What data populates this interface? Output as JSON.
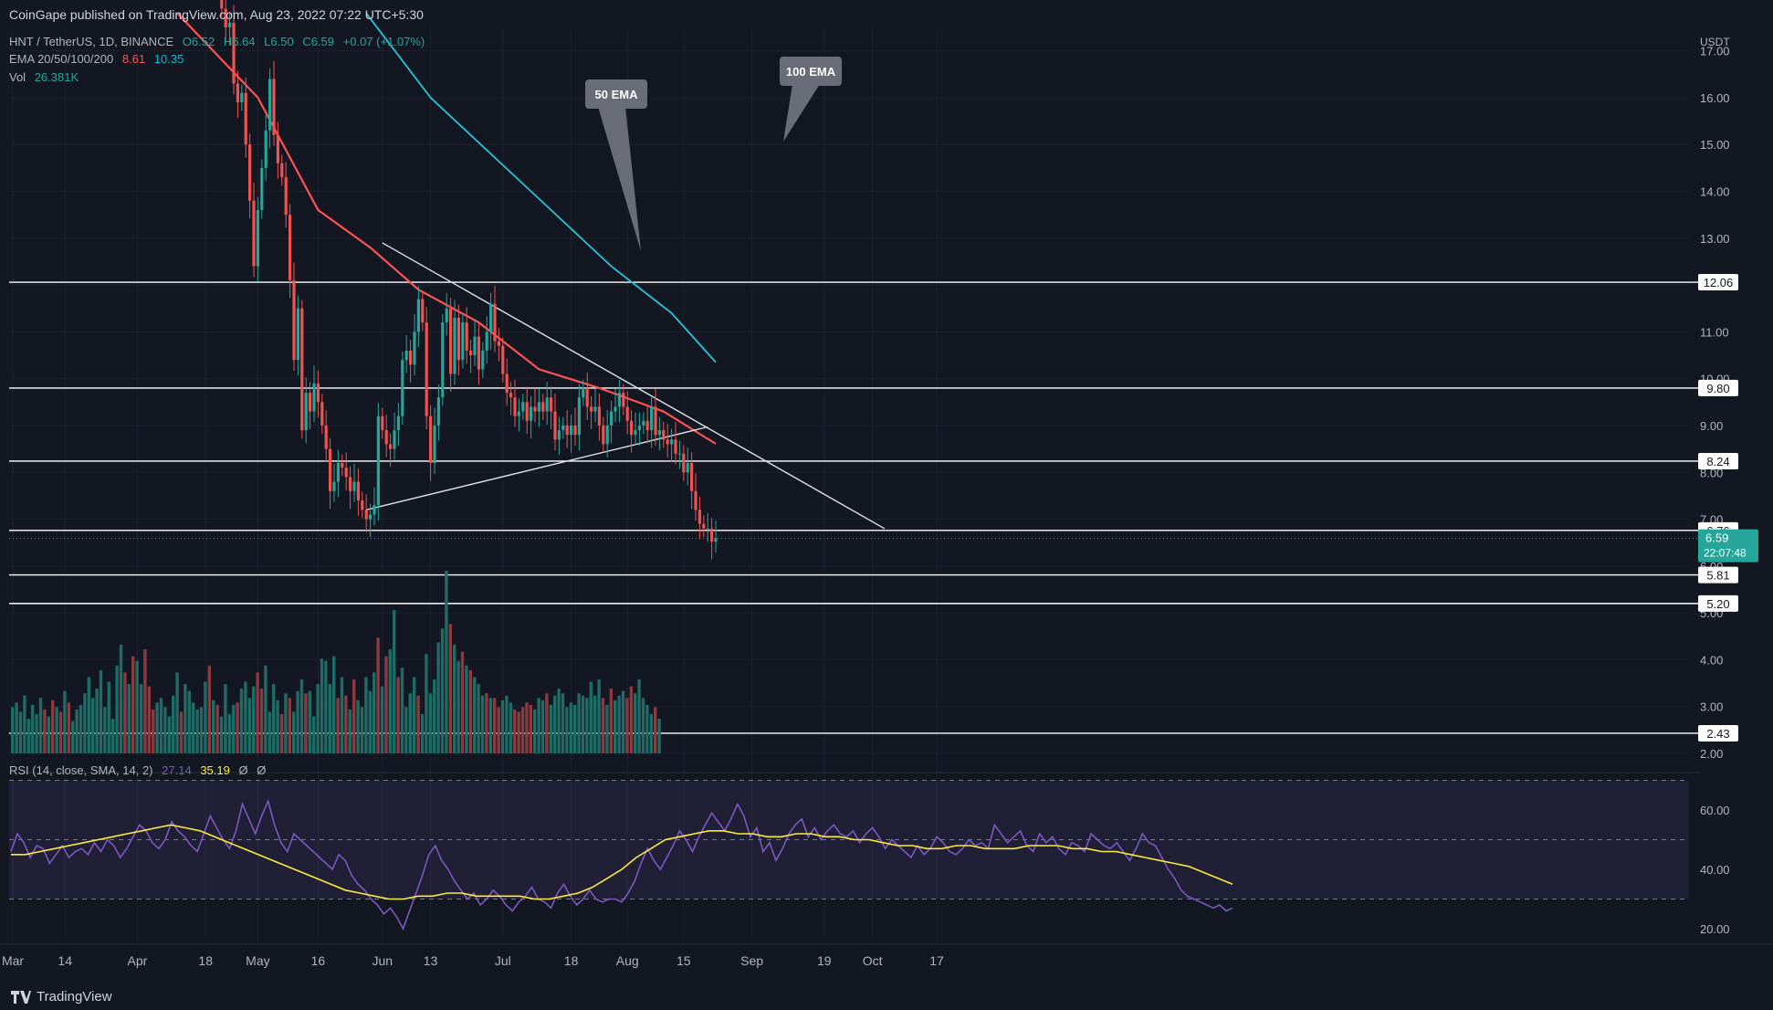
{
  "header": {
    "published": "CoinGape published on TradingView.com, Aug 23, 2022 07:22 UTC+5:30",
    "symbol": "HNT / TetherUS, 1D, BINANCE",
    "ohlc": {
      "o": "O6.52",
      "h": "H6.64",
      "l": "L6.50",
      "c": "C6.59",
      "chg": "+0.07 (+1.07%)"
    },
    "ema_label": "EMA 20/50/100/200",
    "ema_vals": [
      "8.61",
      "10.35"
    ],
    "vol_label": "Vol",
    "vol_val": "26.381K",
    "rsi_label": "RSI (14, close, SMA, 14, 2)",
    "rsi_vals": [
      "27.14",
      "35.19",
      "Ø",
      "Ø"
    ]
  },
  "footer": {
    "brand": "TradingView",
    "icon": "tradingview-logo-icon"
  },
  "colors": {
    "bg": "#131722",
    "up": "#26a69a",
    "down": "#ef5350",
    "ema50": "#ff5252",
    "ema100": "#26c6da",
    "rsi": "#7e57c2",
    "rsi_ma": "#ffeb3b",
    "grid": "#1e222d"
  },
  "chart_data": [
    {
      "type": "candlestick",
      "title": "HNT / TetherUS, 1D, BINANCE",
      "currency": "USDT",
      "ylim": [
        2,
        17.5
      ],
      "y_ticks": [
        "2.00",
        "3.00",
        "4.00",
        "5.00",
        "6.00",
        "7.00",
        "8.00",
        "9.00",
        "10.00",
        "11.00",
        "12.00",
        "13.00",
        "14.00",
        "15.00",
        "16.00",
        "17.00"
      ],
      "x_ticks": [
        "Mar",
        "14",
        "Apr",
        "18",
        "May",
        "16",
        "Jun",
        "13",
        "Jul",
        "18",
        "Aug",
        "15",
        "Sep",
        "19",
        "Oct",
        "17"
      ],
      "x_tick_dates": [
        "2022-03-01",
        "2022-03-14",
        "2022-04-01",
        "2022-04-18",
        "2022-05-01",
        "2022-05-16",
        "2022-06-01",
        "2022-06-13",
        "2022-07-01",
        "2022-07-18",
        "2022-08-01",
        "2022-08-15",
        "2022-09-01",
        "2022-09-19",
        "2022-10-01",
        "2022-10-17"
      ],
      "price_series": [
        [
          "2022-04-22",
          17.9
        ],
        [
          "2022-04-23",
          17.5
        ],
        [
          "2022-04-24",
          17.6
        ],
        [
          "2022-04-25",
          16.3
        ],
        [
          "2022-04-26",
          15.9
        ],
        [
          "2022-04-27",
          16.1
        ],
        [
          "2022-04-28",
          15.0
        ],
        [
          "2022-04-29",
          13.8
        ],
        [
          "2022-04-30",
          12.4
        ],
        [
          "2022-05-01",
          13.6
        ],
        [
          "2022-05-02",
          14.5
        ],
        [
          "2022-05-03",
          15.3
        ],
        [
          "2022-05-04",
          16.4
        ],
        [
          "2022-05-05",
          15.2
        ],
        [
          "2022-05-06",
          14.6
        ],
        [
          "2022-05-07",
          14.3
        ],
        [
          "2022-05-08",
          13.5
        ],
        [
          "2022-05-09",
          12.1
        ],
        [
          "2022-05-10",
          10.4
        ],
        [
          "2022-05-11",
          11.5
        ],
        [
          "2022-05-12",
          8.9
        ],
        [
          "2022-05-13",
          9.7
        ],
        [
          "2022-05-14",
          9.3
        ],
        [
          "2022-05-15",
          9.9
        ],
        [
          "2022-05-16",
          9.5
        ],
        [
          "2022-05-17",
          9.0
        ],
        [
          "2022-05-18",
          8.5
        ],
        [
          "2022-05-19",
          7.6
        ],
        [
          "2022-05-20",
          7.8
        ],
        [
          "2022-05-21",
          8.2
        ],
        [
          "2022-05-22",
          8.1
        ],
        [
          "2022-05-23",
          7.9
        ],
        [
          "2022-05-24",
          7.6
        ],
        [
          "2022-05-25",
          7.8
        ],
        [
          "2022-05-26",
          7.4
        ],
        [
          "2022-05-27",
          7.2
        ],
        [
          "2022-05-28",
          7.0
        ],
        [
          "2022-05-29",
          7.1
        ],
        [
          "2022-05-30",
          7.3
        ],
        [
          "2022-05-31",
          9.2
        ],
        [
          "2022-06-01",
          8.9
        ],
        [
          "2022-06-02",
          8.6
        ],
        [
          "2022-06-03",
          8.5
        ],
        [
          "2022-06-04",
          8.9
        ],
        [
          "2022-06-05",
          9.2
        ],
        [
          "2022-06-06",
          10.4
        ],
        [
          "2022-06-07",
          10.6
        ],
        [
          "2022-06-08",
          10.3
        ],
        [
          "2022-06-09",
          11.0
        ],
        [
          "2022-06-10",
          11.7
        ],
        [
          "2022-06-11",
          11.2
        ],
        [
          "2022-06-12",
          9.2
        ],
        [
          "2022-06-13",
          8.2
        ],
        [
          "2022-06-14",
          9.0
        ],
        [
          "2022-06-15",
          9.6
        ],
        [
          "2022-06-16",
          11.2
        ],
        [
          "2022-06-17",
          11.5
        ],
        [
          "2022-06-18",
          10.1
        ],
        [
          "2022-06-19",
          11.3
        ],
        [
          "2022-06-20",
          10.4
        ],
        [
          "2022-06-21",
          11.2
        ],
        [
          "2022-06-22",
          10.6
        ],
        [
          "2022-06-23",
          10.5
        ],
        [
          "2022-06-24",
          10.9
        ],
        [
          "2022-06-25",
          10.2
        ],
        [
          "2022-06-26",
          10.6
        ],
        [
          "2022-06-27",
          11.0
        ],
        [
          "2022-06-28",
          11.6
        ],
        [
          "2022-06-29",
          10.8
        ],
        [
          "2022-06-30",
          10.7
        ],
        [
          "2022-07-01",
          10.1
        ],
        [
          "2022-07-02",
          9.7
        ],
        [
          "2022-07-03",
          9.6
        ],
        [
          "2022-07-04",
          9.2
        ],
        [
          "2022-07-05",
          9.3
        ],
        [
          "2022-07-06",
          9.5
        ],
        [
          "2022-07-07",
          9.1
        ],
        [
          "2022-07-08",
          9.4
        ],
        [
          "2022-07-09",
          9.3
        ],
        [
          "2022-07-10",
          9.5
        ],
        [
          "2022-07-11",
          9.3
        ],
        [
          "2022-07-12",
          9.6
        ],
        [
          "2022-07-13",
          9.3
        ],
        [
          "2022-07-14",
          8.7
        ],
        [
          "2022-07-15",
          8.9
        ],
        [
          "2022-07-16",
          9.0
        ],
        [
          "2022-07-17",
          8.8
        ],
        [
          "2022-07-18",
          9.0
        ],
        [
          "2022-07-19",
          8.8
        ],
        [
          "2022-07-20",
          9.6
        ],
        [
          "2022-07-21",
          9.8
        ],
        [
          "2022-07-22",
          9.4
        ],
        [
          "2022-07-23",
          9.3
        ],
        [
          "2022-07-24",
          9.4
        ],
        [
          "2022-07-25",
          9.0
        ],
        [
          "2022-07-26",
          8.6
        ],
        [
          "2022-07-27",
          9.0
        ],
        [
          "2022-07-28",
          9.3
        ],
        [
          "2022-07-29",
          9.4
        ],
        [
          "2022-07-30",
          9.7
        ],
        [
          "2022-07-31",
          9.4
        ],
        [
          "2022-08-01",
          9.1
        ],
        [
          "2022-08-02",
          8.8
        ],
        [
          "2022-08-03",
          8.9
        ],
        [
          "2022-08-04",
          9.0
        ],
        [
          "2022-08-05",
          9.1
        ],
        [
          "2022-08-06",
          8.9
        ],
        [
          "2022-08-07",
          9.4
        ],
        [
          "2022-08-08",
          8.8
        ],
        [
          "2022-08-09",
          8.9
        ],
        [
          "2022-08-10",
          8.7
        ],
        [
          "2022-08-11",
          8.6
        ],
        [
          "2022-08-12",
          8.7
        ],
        [
          "2022-08-13",
          8.4
        ],
        [
          "2022-08-14",
          8.4
        ],
        [
          "2022-08-15",
          8.0
        ],
        [
          "2022-08-16",
          8.2
        ],
        [
          "2022-08-17",
          7.6
        ],
        [
          "2022-08-18",
          7.2
        ],
        [
          "2022-08-19",
          6.9
        ],
        [
          "2022-08-20",
          6.8
        ],
        [
          "2022-08-21",
          6.8
        ],
        [
          "2022-08-22",
          6.52
        ],
        [
          "2022-08-23",
          6.59
        ]
      ],
      "last_price": "6.59",
      "countdown": "22:07:48",
      "levels": [
        "12.06",
        "9.80",
        "8.24",
        "6.76",
        "5.81",
        "5.20",
        "2.43"
      ],
      "annotations": [
        "50 EMA",
        "100 EMA"
      ],
      "ema50": [
        [
          "2022-04-11",
          17.8
        ],
        [
          "2022-05-01",
          16.0
        ],
        [
          "2022-05-16",
          13.6
        ],
        [
          "2022-05-29",
          12.8
        ],
        [
          "2022-06-10",
          11.9
        ],
        [
          "2022-06-25",
          11.2
        ],
        [
          "2022-07-10",
          10.2
        ],
        [
          "2022-07-25",
          9.8
        ],
        [
          "2022-08-10",
          9.3
        ],
        [
          "2022-08-23",
          8.61
        ]
      ],
      "ema100": [
        [
          "2022-05-28",
          17.8
        ],
        [
          "2022-06-13",
          16.0
        ],
        [
          "2022-06-28",
          14.8
        ],
        [
          "2022-07-13",
          13.6
        ],
        [
          "2022-07-28",
          12.4
        ],
        [
          "2022-08-12",
          11.4
        ],
        [
          "2022-08-23",
          10.35
        ]
      ],
      "trendlines": [
        {
          "from": [
            "2022-06-01",
            12.9
          ],
          "to": [
            "2022-10-04",
            6.8
          ]
        },
        {
          "from": [
            "2022-05-28",
            7.2
          ],
          "to": [
            "2022-08-21",
            8.97
          ]
        }
      ],
      "volume": [
        20,
        22,
        18,
        25,
        15,
        21,
        17,
        24,
        19,
        16,
        23,
        20,
        18,
        27,
        22,
        14,
        19,
        21,
        26,
        33,
        24,
        28,
        36,
        20,
        31,
        15,
        38,
        47,
        35,
        30,
        42,
        40,
        30,
        45,
        29,
        19,
        22,
        24,
        20,
        16,
        25,
        35,
        18,
        30,
        27,
        22,
        19,
        20,
        31,
        38,
        23,
        21,
        16,
        30,
        17,
        21,
        22,
        28,
        31,
        24,
        29,
        35,
        28,
        38,
        18,
        30,
        23,
        17,
        26,
        24,
        18,
        27,
        32,
        26,
        27,
        16,
        30,
        41,
        40,
        30,
        42,
        24,
        33,
        25,
        19,
        32,
        23,
        20,
        33,
        27,
        35,
        50,
        29,
        42,
        45,
        62,
        33,
        37,
        20,
        26,
        33,
        25,
        17,
        43,
        26,
        32,
        48,
        54,
        79,
        56,
        47,
        40,
        44,
        38,
        36,
        33,
        30,
        25,
        26,
        24,
        24,
        20,
        23,
        25,
        22,
        19,
        18,
        20,
        22,
        21,
        19,
        24,
        23,
        26,
        21,
        25,
        28,
        26,
        20,
        22,
        21,
        26,
        25,
        24,
        31,
        25,
        32,
        24,
        21,
        28,
        23,
        25,
        27,
        24,
        29,
        26,
        32,
        24,
        21,
        17,
        20,
        15
      ]
    },
    {
      "type": "line",
      "title": "RSI (14, close, SMA, 14, 2)",
      "ylim": [
        16,
        72
      ],
      "y_ticks": [
        "20.00",
        "40.00",
        "60.00"
      ],
      "bands": [
        30,
        50,
        70
      ],
      "rsi": [
        46,
        52,
        49,
        44,
        48,
        47,
        42,
        45,
        48,
        44,
        46,
        47,
        45,
        49,
        46,
        50,
        48,
        44,
        47,
        51,
        55,
        53,
        49,
        47,
        50,
        56,
        53,
        51,
        48,
        46,
        52,
        58,
        54,
        50,
        47,
        53,
        62,
        57,
        52,
        58,
        63,
        55,
        49,
        46,
        52,
        50,
        48,
        46,
        44,
        42,
        40,
        45,
        43,
        38,
        35,
        33,
        30,
        28,
        25,
        27,
        24,
        20,
        26,
        32,
        38,
        45,
        48,
        43,
        40,
        36,
        33,
        30,
        32,
        28,
        30,
        33,
        31,
        28,
        26,
        29,
        31,
        34,
        30,
        29,
        27,
        32,
        35,
        31,
        28,
        30,
        33,
        30,
        29,
        30,
        30,
        29,
        32,
        36,
        42,
        47,
        43,
        40,
        44,
        48,
        53,
        50,
        46,
        51,
        55,
        59,
        56,
        53,
        57,
        62,
        58,
        51,
        54,
        46,
        49,
        43,
        47,
        52,
        55,
        57,
        51,
        54,
        50,
        53,
        55,
        52,
        51,
        53,
        49,
        52,
        54,
        51,
        47,
        50,
        48,
        46,
        44,
        48,
        45,
        47,
        51,
        49,
        46,
        45,
        47,
        50,
        48,
        49,
        47,
        55,
        52,
        49,
        51,
        53,
        48,
        46,
        52,
        49,
        51,
        47,
        45,
        49,
        48,
        46,
        52,
        50,
        48,
        47,
        49,
        46,
        43,
        47,
        52,
        49,
        48,
        44,
        40,
        37,
        33,
        31,
        30,
        29,
        28,
        27,
        28,
        26,
        27
      ],
      "rsi_ma": [
        45,
        45,
        46,
        47,
        48,
        49,
        50,
        51,
        52,
        53,
        54,
        55,
        54,
        53,
        51,
        49,
        47,
        45,
        43,
        41,
        39,
        37,
        35,
        33,
        32,
        31,
        30,
        30,
        31,
        31,
        32,
        32,
        31,
        31,
        31,
        31,
        30,
        30,
        31,
        32,
        34,
        37,
        40,
        44,
        47,
        50,
        51,
        52,
        53,
        53,
        52,
        52,
        51,
        51,
        52,
        52,
        51,
        51,
        50,
        50,
        49,
        48,
        48,
        47,
        47,
        48,
        48,
        47,
        47,
        47,
        48,
        48,
        48,
        47,
        47,
        46,
        46,
        45,
        44,
        43,
        42,
        41,
        39,
        37,
        35
      ]
    }
  ]
}
